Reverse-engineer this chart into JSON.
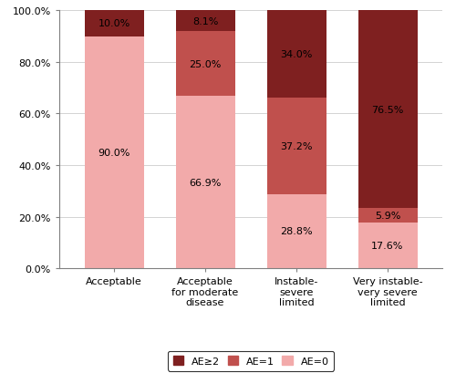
{
  "categories": [
    "Acceptable",
    "Acceptable\nfor moderate\ndisease",
    "Instable-\nsevere\nlimited",
    "Very instable-\nvery severe\nlimited"
  ],
  "ae0": [
    90.0,
    66.9,
    28.8,
    17.6
  ],
  "ae1": [
    0.0,
    25.0,
    37.2,
    5.9
  ],
  "ae2": [
    10.0,
    8.1,
    34.0,
    76.5
  ],
  "color_ae0": "#f2aaaa",
  "color_ae1": "#c0504d",
  "color_ae2": "#7f2020",
  "label_ae0": "AE=0",
  "label_ae1": "AE=1",
  "label_ae2": "AE≥2",
  "ylim": [
    0,
    100
  ],
  "yticks": [
    0,
    20,
    40,
    60,
    80,
    100
  ],
  "ytick_labels": [
    "0.0%",
    "20.0%",
    "40.0%",
    "60.0%",
    "80.0%",
    "100.0%"
  ],
  "label_fontsize": 8,
  "tick_fontsize": 8,
  "legend_fontsize": 8,
  "bar_width": 0.65,
  "figwidth": 5.0,
  "figheight": 4.1,
  "dpi": 100
}
